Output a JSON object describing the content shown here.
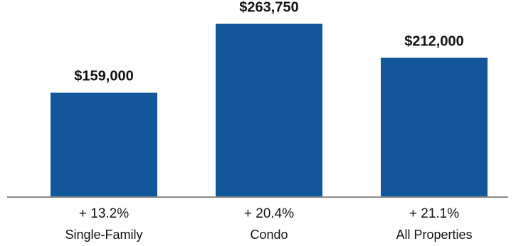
{
  "chart_data": {
    "type": "bar",
    "categories": [
      "Single-Family",
      "Condo",
      "All Properties"
    ],
    "values": [
      159000,
      263750,
      212000
    ],
    "value_labels": [
      "$159,000",
      "$263,750",
      "$212,000"
    ],
    "change_labels": [
      "+ 13.2%",
      "+ 20.4%",
      "+ 21.1%"
    ],
    "ylim": [
      0,
      300000
    ],
    "grid": false,
    "legend": "none",
    "colors": {
      "bar": "#125799",
      "baseline": "#8a8a8a",
      "text": "#111111"
    }
  }
}
